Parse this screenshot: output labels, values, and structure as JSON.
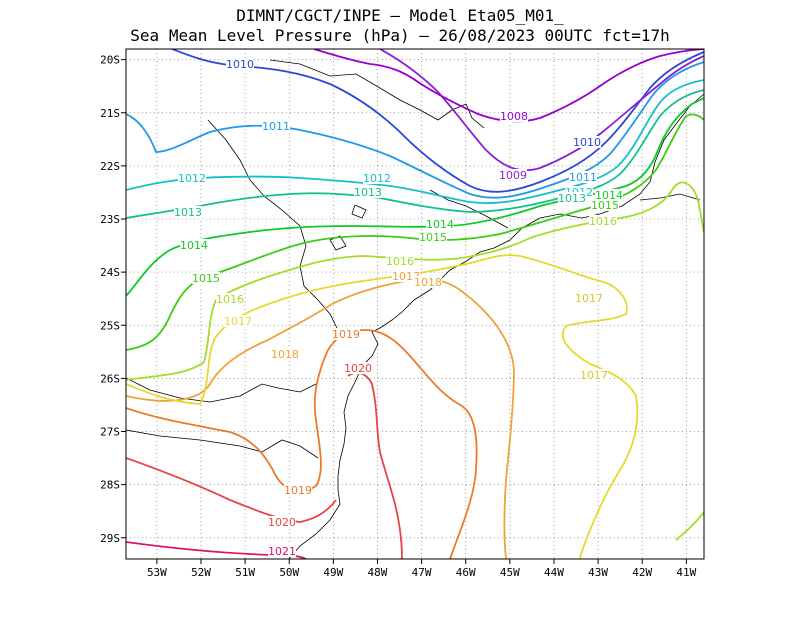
{
  "title_line1": "DIMNT/CGCT/INPE –  Model Eta05_M01_",
  "title_line2": "Sea Mean Level Pressure (hPa) – 26/08/2023 00UTC fct=17h",
  "map": {
    "lon_range": [
      -53.7,
      -40.6
    ],
    "lat_range": [
      -29.4,
      -19.8
    ],
    "lon_ticks": [
      "53W",
      "52W",
      "51W",
      "50W",
      "49W",
      "48W",
      "47W",
      "46W",
      "45W",
      "44W",
      "43W",
      "42W",
      "41W"
    ],
    "lat_ticks": [
      "20S",
      "21S",
      "22S",
      "23S",
      "24S",
      "25S",
      "26S",
      "27S",
      "28S",
      "29S"
    ],
    "grid": true
  },
  "isobars": [
    {
      "value": "1008",
      "color": "#9900cc"
    },
    {
      "value": "1009",
      "color": "#8a1fd6"
    },
    {
      "value": "1010",
      "color": "#2a48d8"
    },
    {
      "value": "1011",
      "color": "#1e9ae8"
    },
    {
      "value": "1012",
      "color": "#14c0c8"
    },
    {
      "value": "1013",
      "color": "#12c08e"
    },
    {
      "value": "1014",
      "color": "#10c828"
    },
    {
      "value": "1015",
      "color": "#3ccc14"
    },
    {
      "value": "1016",
      "color": "#a4dc28"
    },
    {
      "value": "1017",
      "color": "#e6d830"
    },
    {
      "value": "1018",
      "color": "#eca43a"
    },
    {
      "value": "1019",
      "color": "#ec7a2a"
    },
    {
      "value": "1020",
      "color": "#e84444"
    },
    {
      "value": "1021",
      "color": "#e0106c"
    }
  ]
}
